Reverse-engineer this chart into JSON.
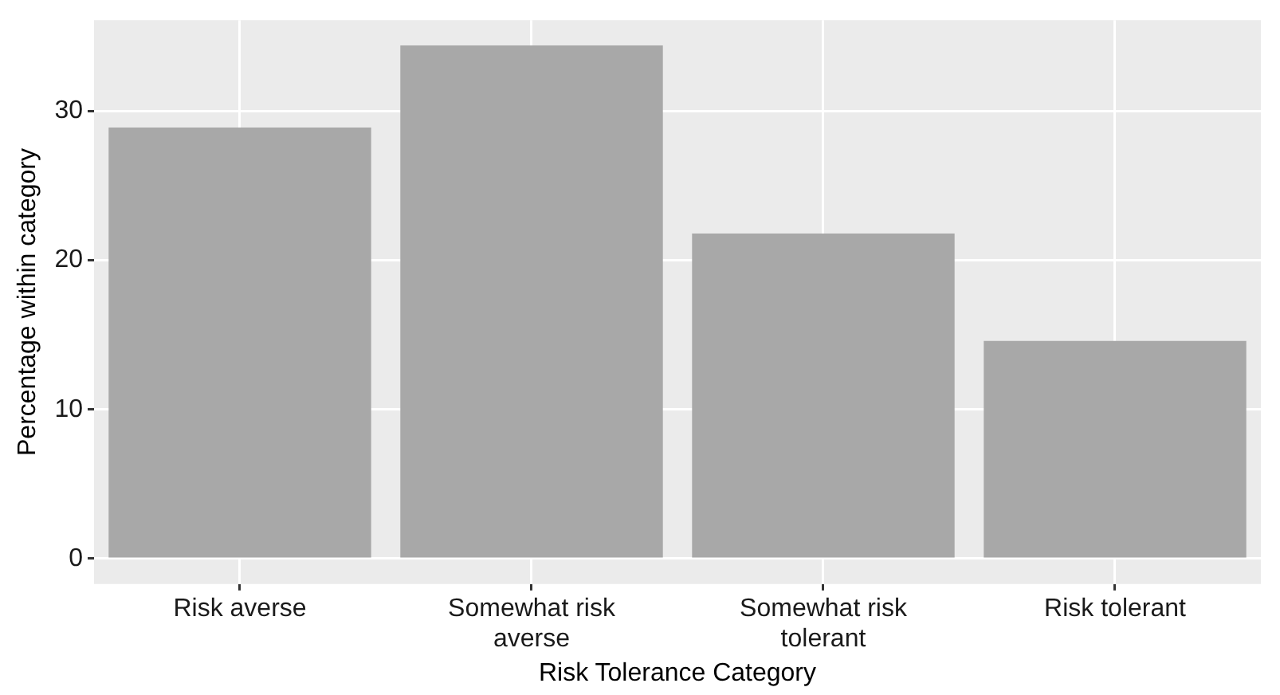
{
  "chart_data": {
    "type": "bar",
    "xlabel": "Risk Tolerance Category",
    "ylabel": "Percentage within category",
    "categories": [
      "Risk averse",
      "Somewhat risk averse",
      "Somewhat risk tolerant",
      "Risk tolerant"
    ],
    "values": [
      28.9,
      34.4,
      21.8,
      14.6
    ],
    "color": "#a8a8a8",
    "ylim": [
      -1.7,
      36.1
    ],
    "yticks": [
      0,
      10,
      20,
      30
    ],
    "grid": true
  }
}
